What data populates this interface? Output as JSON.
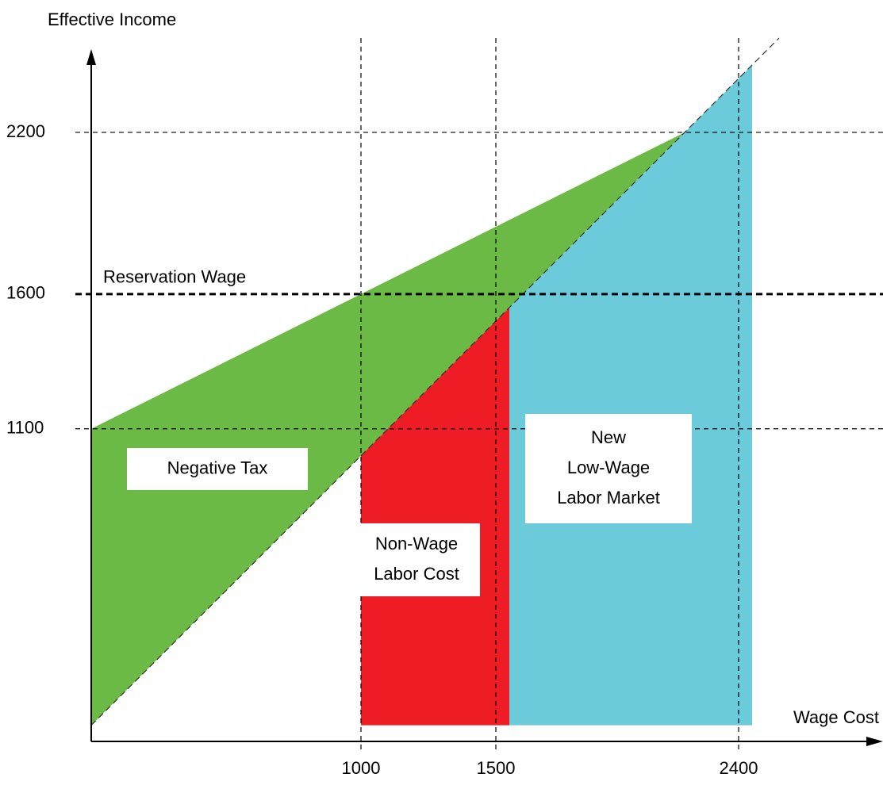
{
  "chart_data": {
    "type": "area",
    "x_label": "Wage Cost",
    "y_label": "Effective Income",
    "xlim": [
      0,
      2900
    ],
    "ylim": [
      -60,
      2500
    ],
    "xticks": [
      1000,
      1500,
      2400
    ],
    "yticks": [
      1100,
      1600,
      2200
    ],
    "grid": true,
    "diagonal": {
      "x": [
        0,
        2550
      ],
      "values": [
        0,
        2550
      ]
    },
    "annotations": [
      {
        "text": "Reservation Wage",
        "y": 1600
      }
    ],
    "series": [
      {
        "name_lines": [
          "Negative Tax"
        ],
        "color": "#6cba46",
        "x": [
          0,
          0,
          2200
        ],
        "values": [
          0,
          1100,
          2200
        ]
      },
      {
        "name_lines": [
          "Non-Wage",
          "Labor Cost"
        ],
        "color": "#ee1c24",
        "x": [
          1000,
          1000,
          1550,
          1550
        ],
        "values": [
          0,
          1000,
          1550,
          0
        ]
      },
      {
        "name_lines": [
          "New",
          "Low-Wage",
          "Labor Market"
        ],
        "color": "#6ccbdb",
        "x": [
          1550,
          1550,
          2450,
          2450
        ],
        "values": [
          0,
          1550,
          2450,
          0
        ]
      }
    ]
  }
}
